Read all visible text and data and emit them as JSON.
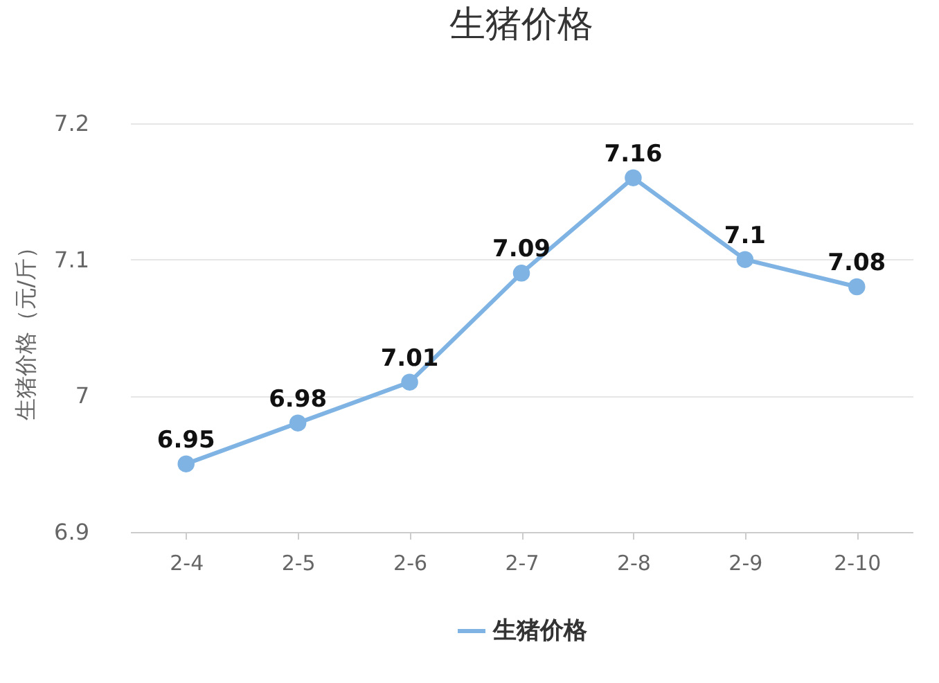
{
  "chart_data": {
    "type": "line",
    "title": "生猪价格",
    "ylabel": "生猪价格（元/斤）",
    "categories": [
      "2-4",
      "2-5",
      "2-6",
      "2-7",
      "2-8",
      "2-9",
      "2-10"
    ],
    "series": [
      {
        "name": "生猪价格",
        "color": "#7eb3e3",
        "values": [
          6.95,
          6.98,
          7.01,
          7.09,
          7.16,
          7.1,
          7.08
        ]
      }
    ],
    "ylim": [
      6.9,
      7.2
    ],
    "yticks": [
      6.9,
      7,
      7.1,
      7.2
    ],
    "grid": "y",
    "legend": "bottom",
    "marker": "circle",
    "line_style": "solid",
    "data_labels": true
  }
}
